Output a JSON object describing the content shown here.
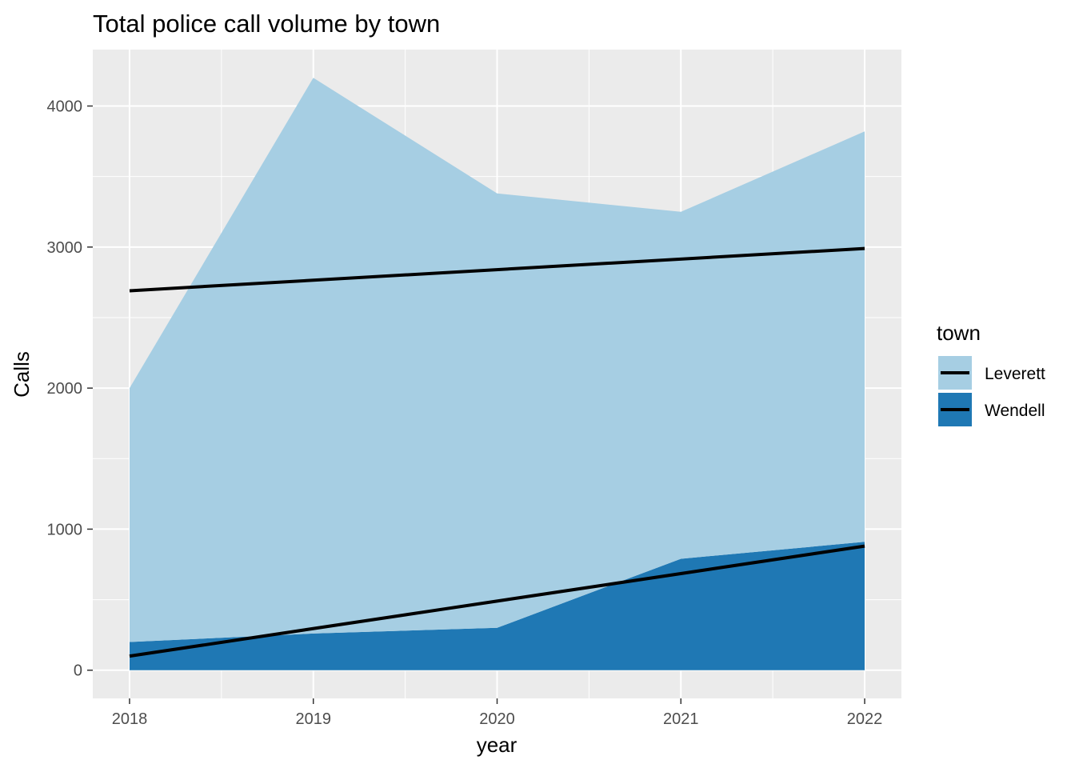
{
  "chart_data": {
    "type": "area",
    "stacked": true,
    "title": "Total police call volume by town",
    "xlabel": "year",
    "ylabel": "Calls",
    "x": [
      2018,
      2019,
      2020,
      2021,
      2022
    ],
    "x_tick_labels": [
      "2018",
      "2019",
      "2020",
      "2021",
      "2022"
    ],
    "y_ticks": [
      0,
      1000,
      2000,
      3000,
      4000
    ],
    "y_tick_labels": [
      "0",
      "1000",
      "2000",
      "3000",
      "4000"
    ],
    "xlim": [
      2017.8,
      2022.2
    ],
    "ylim": [
      -200,
      4400
    ],
    "grid": true,
    "legend": {
      "title": "town",
      "position": "right"
    },
    "series": [
      {
        "name": "Wendell",
        "color": "#1F78B4",
        "values": [
          200,
          260,
          300,
          790,
          910
        ],
        "trend": {
          "type": "linear",
          "color": "#000000",
          "start": 100,
          "end": 880
        }
      },
      {
        "name": "Leverett",
        "color": "#A6CEE3",
        "values": [
          1800,
          3940,
          3080,
          2460,
          2910
        ],
        "trend": {
          "type": "linear",
          "color": "#000000",
          "start": 2690,
          "end": 2990
        }
      }
    ],
    "colors": {
      "panel": "#EBEBEB",
      "grid_major": "#FFFFFF",
      "trend": "#000000"
    }
  }
}
